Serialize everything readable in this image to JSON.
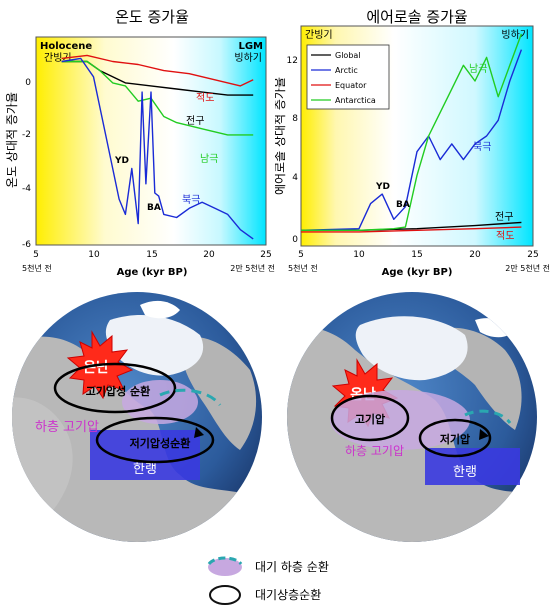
{
  "colors": {
    "warm_start": "#ffee00",
    "cold_end": "#00e5ff",
    "global": "#000000",
    "arctic": "#1a2bd6",
    "equator": "#e01010",
    "antarctica": "#22cc22",
    "warm_burst": "#ff2a1a",
    "cold_air": "#3a3ae0",
    "low_pressure_band": "#c7a8e0",
    "magenta_text": "#cc33cc"
  },
  "top_left": {
    "title": "온도 증가율",
    "ylabel": "온도 상대적 증가율",
    "xlabel": "Age (kyr BP)",
    "left_tag_en": "Holocene",
    "left_tag_kr": "간빙기",
    "right_tag_en": "LGM",
    "right_tag_kr": "빙하기",
    "x_ticks": [
      "5",
      "10",
      "15",
      "20",
      "25"
    ],
    "x_left_note": "5천년 전",
    "x_right_note": "2만 5천년 전",
    "y_ticks": [
      "0",
      "-2",
      "-4",
      "-6"
    ],
    "labels": {
      "equator": "적도",
      "global": "전구",
      "antarctica": "남극",
      "arctic": "북극",
      "yd": "YD",
      "ba": "BA"
    }
  },
  "top_right": {
    "title": "에어로솔 증가율",
    "ylabel": "에어로솔 상대적 증가율",
    "xlabel": "Age (kyr BP)",
    "left_tag_kr": "간빙기",
    "right_tag_kr": "빙하기",
    "x_ticks": [
      "5",
      "10",
      "15",
      "20",
      "25"
    ],
    "x_left_note": "5천년 전",
    "x_right_note": "2만 5천년 전",
    "y_ticks": [
      "0",
      "4",
      "8",
      "12"
    ],
    "legend": [
      "Global",
      "Arctic",
      "Equator",
      "Antarctica"
    ],
    "labels": {
      "antarctica": "남극",
      "arctic": "북극",
      "yd": "YD",
      "ba": "BA",
      "global": "전구",
      "equator": "적도"
    }
  },
  "chart_data": [
    {
      "type": "line",
      "title": "온도 증가율",
      "xlabel": "Age (kyr BP)",
      "ylabel": "온도 상대적 증가율",
      "xlim": [
        5,
        23
      ],
      "ylim": [
        -6,
        0.8
      ],
      "series": [
        {
          "name": "적도",
          "x": [
            7,
            9,
            11,
            13,
            15,
            17,
            19,
            21,
            22
          ],
          "y": [
            0.1,
            0.2,
            0,
            -0.1,
            -0.3,
            -0.4,
            -0.6,
            -0.8,
            -0.6
          ]
        },
        {
          "name": "전구",
          "x": [
            7,
            9,
            10,
            12,
            14,
            16,
            18,
            20,
            22
          ],
          "y": [
            0,
            0,
            -0.3,
            -0.7,
            -0.8,
            -0.9,
            -1.0,
            -1.1,
            -1.1
          ]
        },
        {
          "name": "남극",
          "x": [
            7,
            9,
            10,
            11,
            12,
            13,
            14,
            15,
            16,
            18,
            20,
            22
          ],
          "y": [
            0,
            0,
            -0.3,
            -0.7,
            -0.8,
            -1.3,
            -1.2,
            -1.8,
            -2.0,
            -2.2,
            -2.4,
            -2.4
          ]
        },
        {
          "name": "북극",
          "x": [
            7,
            8.5,
            9.5,
            10,
            10.5,
            11,
            11.5,
            12,
            12.5,
            13,
            13.3,
            13.6,
            14,
            14.3,
            14.6,
            15,
            16,
            17,
            18,
            19,
            20,
            21,
            22
          ],
          "y": [
            0,
            0.1,
            -0.5,
            -1.5,
            -2.5,
            -3.5,
            -4.5,
            -5.0,
            -3.5,
            -5.3,
            -1.0,
            -4.0,
            -1.0,
            -4.3,
            -4.4,
            -5.0,
            -5.1,
            -4.8,
            -4.6,
            -4.8,
            -5.0,
            -5.5,
            -5.8
          ]
        }
      ]
    },
    {
      "type": "line",
      "title": "에어로솔 증가율",
      "xlabel": "Age (kyr BP)",
      "ylabel": "에어로솔 상대적 증가율",
      "xlim": [
        5,
        25
      ],
      "ylim": [
        -0.5,
        13.5
      ],
      "series": [
        {
          "name": "Global",
          "x": [
            5,
            10,
            15,
            20,
            24
          ],
          "y": [
            0.5,
            0.5,
            0.6,
            0.8,
            1.0
          ]
        },
        {
          "name": "Arctic",
          "x": [
            5,
            10,
            11,
            12,
            13,
            14,
            15,
            16,
            17,
            18,
            19,
            20,
            21,
            22,
            23,
            24
          ],
          "y": [
            0.5,
            0.6,
            2.2,
            2.8,
            1.2,
            2.0,
            5.5,
            6.5,
            5.0,
            6.0,
            5.0,
            6.0,
            6.5,
            7.5,
            10.0,
            12.0
          ]
        },
        {
          "name": "Equator",
          "x": [
            5,
            10,
            15,
            20,
            24
          ],
          "y": [
            0.4,
            0.4,
            0.5,
            0.6,
            0.7
          ]
        },
        {
          "name": "Antarctica",
          "x": [
            5,
            10,
            13,
            14,
            15,
            16,
            17,
            18,
            19,
            20,
            21,
            22,
            23,
            24
          ],
          "y": [
            0.5,
            0.5,
            0.6,
            0.7,
            4.0,
            6.5,
            8.0,
            9.5,
            11.0,
            10.0,
            11.5,
            9.0,
            11.0,
            13.0
          ]
        }
      ]
    }
  ],
  "globes": {
    "left": {
      "warm": "온난",
      "high": "고기압성 순환",
      "low_pressure": "하층 고기압",
      "lowc": "저기압성순환",
      "cold": "한랭"
    },
    "right": {
      "warm": "온난",
      "high": "고기압",
      "low_pressure": "하층 고기압",
      "lowc": "저기압",
      "cold": "한랭"
    }
  },
  "legend_bottom": {
    "lower": "대기 하층 순환",
    "upper": "대기상층순환"
  }
}
